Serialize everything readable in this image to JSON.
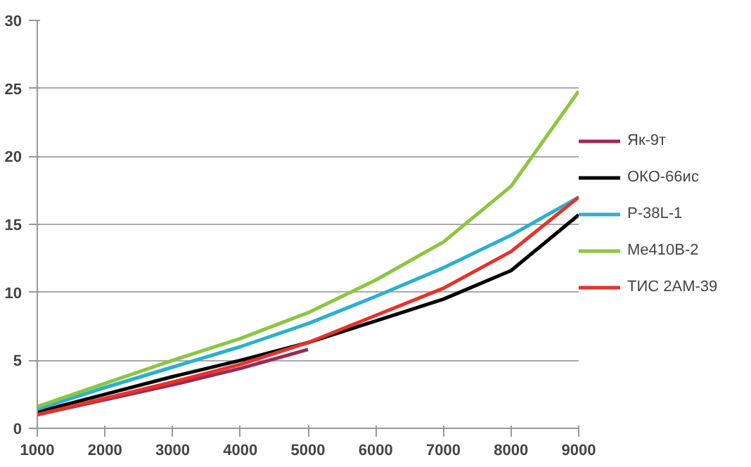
{
  "chart_data": {
    "type": "line",
    "x": [
      1000,
      2000,
      3000,
      4000,
      5000,
      6000,
      7000,
      8000,
      9000
    ],
    "xlim": [
      1000,
      9000
    ],
    "xticks": [
      1000,
      2000,
      3000,
      4000,
      5000,
      6000,
      7000,
      8000,
      9000
    ],
    "ylim": [
      0,
      30
    ],
    "yticks": [
      0,
      5,
      10,
      15,
      20,
      25,
      30
    ],
    "grid": "y",
    "legend": "right",
    "marker": "none",
    "series": [
      {
        "name": "Як-9т",
        "color": "#9b2a55",
        "x": [
          1000,
          2000,
          3000,
          4000,
          5000
        ],
        "values": [
          1.0,
          2.1,
          3.2,
          4.4,
          5.8
        ]
      },
      {
        "name": "ОКО-66ис",
        "color": "#000000",
        "values": [
          1.2,
          2.5,
          3.8,
          5.0,
          6.3,
          7.9,
          9.5,
          11.6,
          15.7
        ]
      },
      {
        "name": "Р-38L-1",
        "color": "#2ab0d0",
        "values": [
          1.4,
          3.0,
          4.5,
          6.0,
          7.7,
          9.7,
          11.8,
          14.2,
          17.0
        ]
      },
      {
        "name": "Me410B-2",
        "color": "#8cc63e",
        "values": [
          1.6,
          3.3,
          5.0,
          6.6,
          8.5,
          10.9,
          13.7,
          17.8,
          24.8
        ]
      },
      {
        "name": "ТИС 2АМ-39",
        "color": "#e8312a",
        "values": [
          1.0,
          2.2,
          3.4,
          4.7,
          6.3,
          8.3,
          10.3,
          13.0,
          17.0
        ]
      }
    ]
  }
}
